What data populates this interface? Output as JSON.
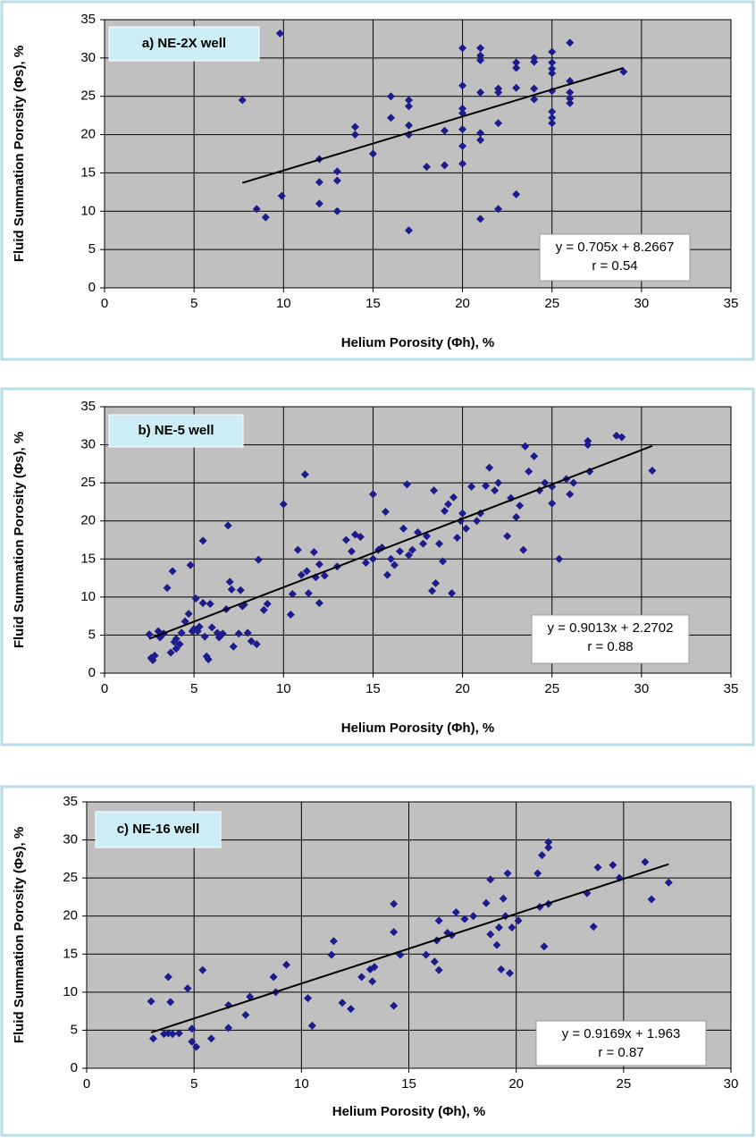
{
  "chart_data": [
    {
      "type": "scatter",
      "title": "a) NE-2X well",
      "x_label": "Helium Porosity (Φh), %",
      "y_label": "Fluid Summation Porosity (Φs), %",
      "color": "#1c1c8c",
      "grid": true,
      "xlim": [
        0,
        35
      ],
      "ylim": [
        0,
        35
      ],
      "xticks": [
        0,
        5,
        10,
        15,
        20,
        25,
        30,
        35
      ],
      "yticks": [
        0,
        5,
        10,
        15,
        20,
        25,
        30,
        35
      ],
      "x": [
        7.7,
        9.8,
        8.5,
        9,
        9.9,
        12,
        12,
        12,
        13,
        13,
        13,
        14,
        14,
        15,
        16,
        16,
        17,
        17,
        17,
        17,
        17,
        18,
        19,
        19,
        20,
        20,
        20,
        20,
        20,
        20,
        20,
        21,
        21,
        21,
        21,
        21,
        21,
        21,
        22,
        22,
        22,
        22,
        23,
        23,
        23,
        23,
        24,
        24,
        24,
        24,
        25,
        25,
        25,
        25,
        25,
        25,
        25,
        25,
        26,
        26,
        26,
        26,
        26,
        29
      ],
      "values": [
        24.5,
        33.2,
        10.3,
        9.2,
        12,
        16.8,
        13.8,
        11,
        15.2,
        14,
        10,
        21,
        20,
        17.5,
        25,
        22.2,
        24.5,
        23.7,
        21.2,
        20,
        7.5,
        15.8,
        20.5,
        16,
        31.3,
        26.4,
        23.4,
        22.8,
        20.7,
        18.5,
        16.2,
        31.3,
        30.3,
        29.7,
        25.5,
        20.2,
        19.3,
        9,
        26,
        25.5,
        21.5,
        10.3,
        29.4,
        28.7,
        26.1,
        12.2,
        30,
        29.5,
        24.6,
        26,
        30.8,
        29.4,
        28.6,
        28,
        25.7,
        23,
        22.2,
        21.5,
        32,
        27,
        25.5,
        24.7,
        24.1,
        28.2
      ],
      "trendline": {
        "x": [
          7.7,
          29
        ],
        "values": [
          13.7,
          28.7
        ]
      },
      "annotations": [
        "y = 0.705x + 8.2667",
        "r = 0.54"
      ]
    },
    {
      "type": "scatter",
      "title": "b) NE-5 well",
      "x_label": "Helium Porosity (Φh), %",
      "y_label": "Fluid Summation Porosity (Φs), %",
      "color": "#1c1c8c",
      "grid": true,
      "xlim": [
        0,
        35
      ],
      "ylim": [
        0,
        35
      ],
      "xticks": [
        0,
        5,
        10,
        15,
        20,
        25,
        30,
        35
      ],
      "yticks": [
        0,
        5,
        10,
        15,
        20,
        25,
        30,
        35
      ],
      "x": [
        2.5,
        2.6,
        2.7,
        2.8,
        3,
        3.1,
        3.3,
        3.5,
        3.7,
        3.8,
        3.9,
        4,
        4,
        4.2,
        4.3,
        4.5,
        4.7,
        4.8,
        4.9,
        5,
        5.1,
        5.2,
        5.3,
        5.5,
        5.5,
        5.6,
        5.7,
        5.8,
        5.9,
        6,
        6.3,
        6.4,
        6.6,
        6.8,
        6.9,
        7,
        7.1,
        7.2,
        7.5,
        7.6,
        7.7,
        7.8,
        8,
        8.2,
        8.5,
        8.6,
        8.9,
        9.1,
        10,
        10.4,
        10.5,
        10.8,
        11,
        11.2,
        11.3,
        11.4,
        11.7,
        11.8,
        12,
        12,
        12.3,
        13,
        13.5,
        13.8,
        14,
        14.3,
        14.6,
        15,
        15,
        15.3,
        15.5,
        15.7,
        15.8,
        16,
        16.2,
        16.5,
        16.7,
        16.9,
        17,
        17.2,
        17.5,
        17.8,
        18,
        18.3,
        18.4,
        18.5,
        18.7,
        18.9,
        19,
        19.2,
        19.4,
        19.5,
        19.7,
        19.9,
        20,
        20.2,
        20.5,
        20.8,
        21,
        21.3,
        21.5,
        21.8,
        22,
        22.5,
        22.7,
        23,
        23.2,
        23.4,
        23.5,
        23.7,
        24,
        24.3,
        24.6,
        25,
        25,
        25.4,
        25.8,
        26,
        26.2,
        27,
        27,
        27.1,
        28.6,
        28.9,
        30.6
      ],
      "values": [
        5.1,
        2,
        1.7,
        2.3,
        5.5,
        4.7,
        5.2,
        11.2,
        2.7,
        13.4,
        4.1,
        3.2,
        4.5,
        3.8,
        5.3,
        6.8,
        7.8,
        14.2,
        5.5,
        5.8,
        9.8,
        5.5,
        6.1,
        9.2,
        17.4,
        4.8,
        2.2,
        1.8,
        9.1,
        6,
        5.3,
        4.7,
        5.2,
        8.4,
        19.4,
        12,
        11,
        3.5,
        5.2,
        10.9,
        8.8,
        9,
        5.3,
        4.2,
        3.8,
        14.9,
        8.3,
        9.1,
        22.2,
        7.7,
        10.4,
        16.2,
        12.9,
        26.1,
        13.4,
        10.5,
        15.9,
        12.6,
        9.2,
        14.3,
        12.8,
        14,
        17.5,
        16,
        18.2,
        17.9,
        14.5,
        23.5,
        15,
        16.2,
        16.5,
        21.2,
        12.9,
        15,
        14.2,
        16,
        19,
        24.8,
        15.5,
        16.2,
        18.5,
        17,
        18,
        10.8,
        24,
        11.8,
        17,
        14.7,
        21.3,
        22.2,
        10.5,
        23.1,
        17.8,
        20,
        21,
        19,
        24.5,
        20,
        21,
        24.6,
        27,
        24,
        25,
        18,
        23,
        20.5,
        22,
        16.2,
        29.8,
        26.5,
        28.5,
        24,
        25,
        24.5,
        22.3,
        15,
        25.5,
        23.5,
        25,
        30.5,
        30,
        26.5,
        31.2,
        31,
        26.6
      ],
      "trendline": {
        "x": [
          2.5,
          30.6
        ],
        "values": [
          4.52,
          29.85
        ]
      },
      "annotations": [
        "y = 0.9013x + 2.2702",
        "r = 0.88"
      ]
    },
    {
      "type": "scatter",
      "title": "c) NE-16 well",
      "x_label": "Helium Porosity (Φh), %",
      "y_label": "Fluid Summation Porosity (Φs), %",
      "color": "#1c1c8c",
      "grid": true,
      "xlim": [
        0,
        30
      ],
      "ylim": [
        0,
        35
      ],
      "xticks": [
        0,
        5,
        10,
        15,
        20,
        25,
        30
      ],
      "yticks": [
        0,
        5,
        10,
        15,
        20,
        25,
        30,
        35
      ],
      "x": [
        3,
        3.1,
        3.6,
        3.8,
        3.8,
        3.9,
        4,
        4.3,
        4.7,
        4.9,
        4.9,
        5.1,
        5.4,
        5.8,
        6.6,
        6.6,
        7.4,
        7.6,
        8.7,
        8.8,
        9.3,
        10.3,
        10.5,
        11.4,
        11.5,
        11.9,
        12.3,
        12.8,
        13.2,
        13.3,
        13.4,
        14.3,
        14.3,
        14.3,
        14.6,
        15.8,
        16.2,
        16.3,
        16.4,
        16.4,
        16.8,
        17,
        17.2,
        17.6,
        18,
        18.6,
        18.8,
        18.8,
        19.1,
        19.2,
        19.3,
        19.4,
        19.5,
        19.6,
        19.7,
        19.8,
        20.1,
        21,
        21.1,
        21.2,
        21.3,
        21.5,
        21.5,
        21.5,
        23.3,
        23.6,
        23.8,
        24.5,
        24.8,
        26,
        26.3,
        27.1
      ],
      "values": [
        8.8,
        3.9,
        4.5,
        12,
        4.6,
        8.7,
        4.5,
        4.6,
        10.5,
        3.5,
        5.2,
        2.8,
        12.9,
        3.9,
        8.3,
        5.3,
        7,
        9.4,
        12,
        10,
        13.6,
        9.2,
        5.6,
        14.9,
        16.7,
        8.6,
        7.8,
        12,
        13,
        11.4,
        13.3,
        21.6,
        17.9,
        8.2,
        14.9,
        14.9,
        14,
        16.8,
        19.4,
        12.9,
        17.8,
        17.5,
        20.5,
        19.6,
        20,
        21.7,
        24.8,
        17.6,
        16.2,
        18.5,
        13,
        22.3,
        20,
        25.6,
        12.5,
        18.5,
        19.4,
        25.6,
        21.2,
        28,
        16,
        21.6,
        29,
        29.7,
        23,
        18.6,
        26.4,
        26.7,
        25,
        27.1,
        22.2,
        24.4
      ],
      "trendline": {
        "x": [
          3,
          27.1
        ],
        "values": [
          4.71,
          26.81
        ]
      },
      "annotations": [
        "y = 0.9169x + 1.963",
        "r = 0.87"
      ]
    }
  ]
}
